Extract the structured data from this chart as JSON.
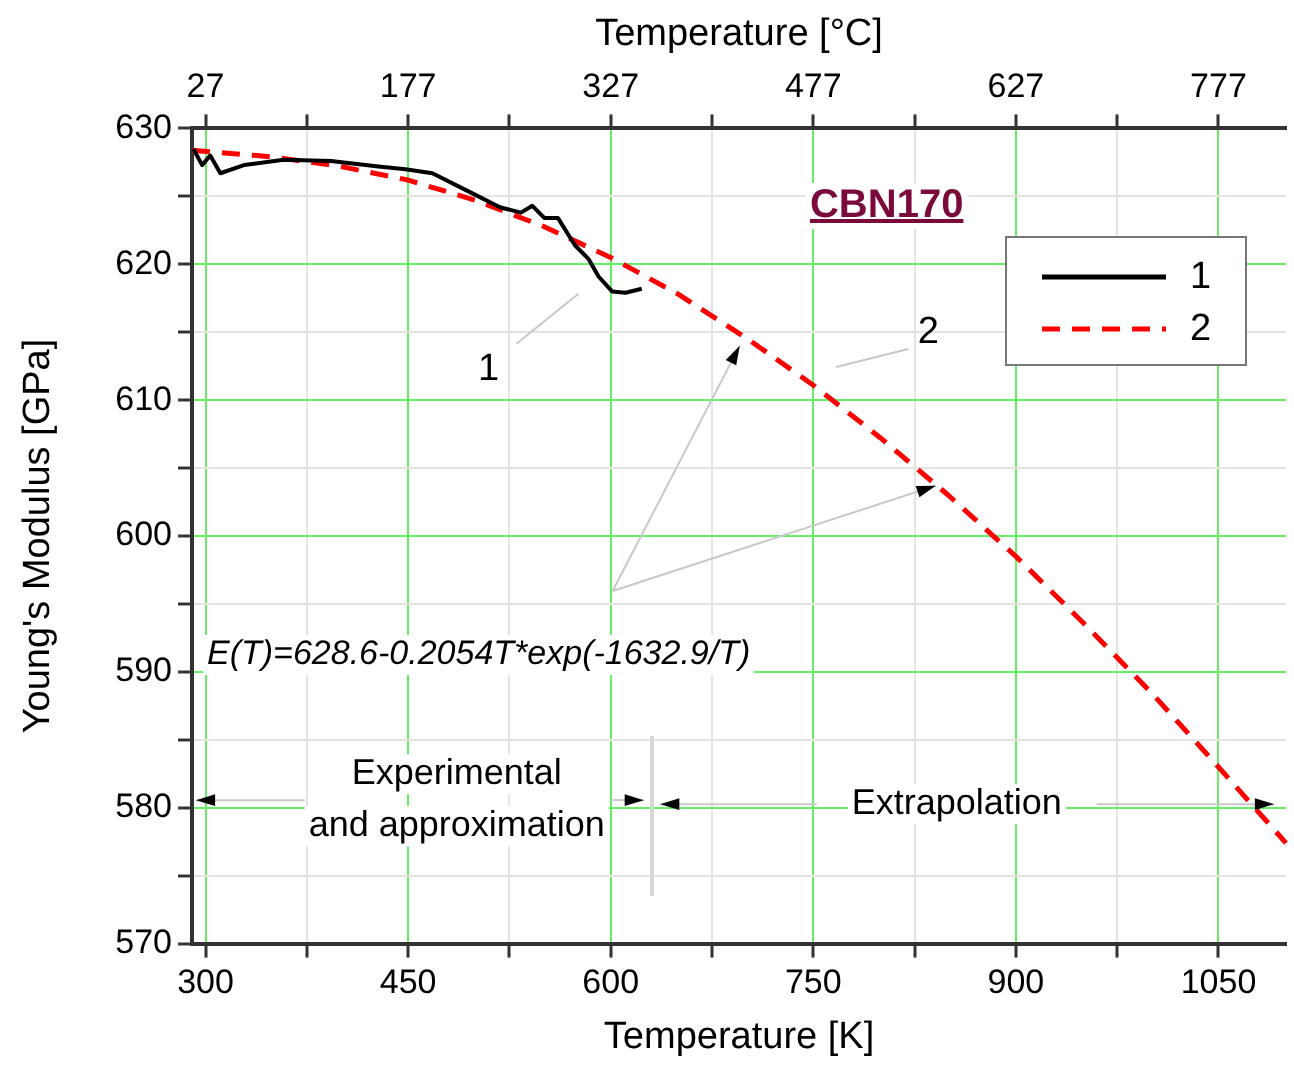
{
  "chart_data": {
    "type": "line",
    "xlabel": "Temperature [K]",
    "x2label": "Temperature [°C]",
    "ylabel": "Young's Modulus [GPa]",
    "xlim": [
      290,
      1100
    ],
    "ylim": [
      570,
      630
    ],
    "x2lim": [
      17,
      827
    ],
    "xticks": [
      300,
      {
        "value": 375,
        "label": null
      },
      450,
      {
        "value": 525,
        "label": null
      },
      600,
      {
        "value": 675,
        "label": null
      },
      750,
      {
        "value": 825,
        "label": null
      },
      900,
      {
        "value": 975,
        "label": null
      },
      1050
    ],
    "x2ticks": [
      27,
      {
        "value": 102,
        "label": null
      },
      177,
      {
        "value": 252,
        "label": null
      },
      327,
      {
        "value": 402,
        "label": null
      },
      477,
      {
        "value": 552,
        "label": null
      },
      627,
      {
        "value": 702,
        "label": null
      },
      777
    ],
    "yticks": [
      570,
      {
        "value": 575,
        "label": null
      },
      580,
      {
        "value": 585,
        "label": null
      },
      590,
      {
        "value": 595,
        "label": null
      },
      600,
      {
        "value": 605,
        "label": null
      },
      610,
      {
        "value": 615,
        "label": null
      },
      620,
      {
        "value": 625,
        "label": null
      },
      630
    ],
    "grid": true,
    "legend": "top right",
    "series": [
      {
        "name": "1",
        "color": "#000000",
        "line_style": "solid",
        "x": [
          291,
          297.5,
          303.5,
          311,
          328.5,
          358,
          393,
          428,
          448,
          468,
          498,
          518,
          533.5,
          542,
          551,
          561,
          573.5,
          583.5,
          591,
          601,
          611,
          623
        ],
        "values": [
          628.5,
          627.3,
          628.0,
          626.7,
          627.3,
          627.7,
          627.6,
          627.2,
          627.0,
          626.7,
          625.2,
          624.2,
          623.8,
          624.3,
          623.4,
          623.4,
          621.4,
          620.4,
          619.1,
          618.0,
          617.9,
          618.2
        ]
      },
      {
        "name": "2",
        "color": "#ff0000",
        "line_style": "dashed",
        "x": [
          290,
          350,
          400,
          450,
          500,
          550,
          600,
          650,
          700,
          750,
          800,
          850,
          900,
          950,
          1000,
          1050,
          1100
        ],
        "values": [
          628.4,
          627.9,
          627.2,
          626.2,
          624.7,
          622.8,
          620.5,
          617.8,
          614.6,
          611.1,
          607.2,
          603.0,
          598.5,
          593.6,
          588.5,
          583.0,
          577.4
        ]
      }
    ],
    "annotations": [
      "CBN170",
      "1",
      "2",
      {
        "text": "E(T)=628.6-0.2054T*exp(-1632.9/T)",
        "x": 700,
        "y": 614.6
      },
      "Experimental\nand approximation",
      "Extrapolation"
    ]
  }
}
